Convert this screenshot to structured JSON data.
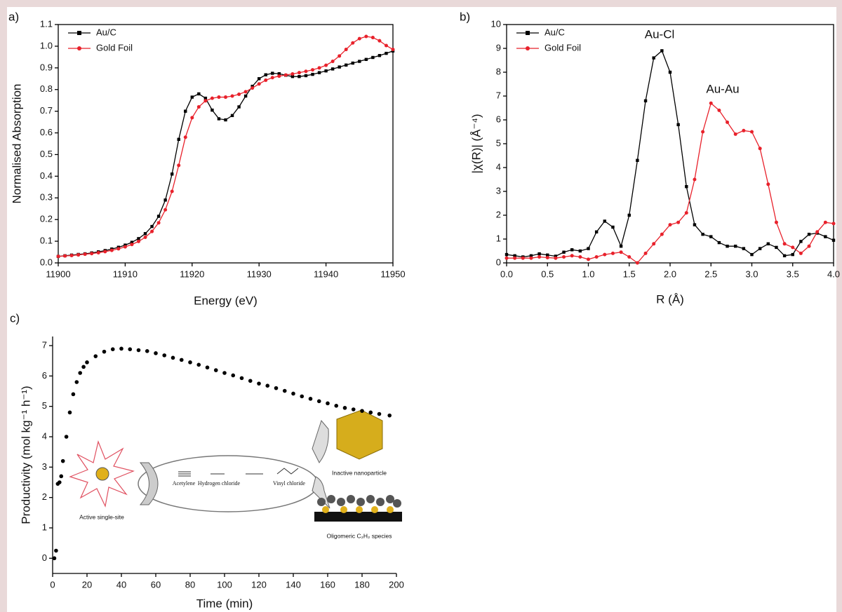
{
  "chart_data": [
    {
      "type": "line",
      "panel_label": "a)",
      "x_label": "Energy (eV)",
      "y_label": "Normalised Absorption",
      "x": [
        11900,
        11901,
        11902,
        11903,
        11904,
        11905,
        11906,
        11907,
        11908,
        11909,
        11910,
        11911,
        11912,
        11913,
        11914,
        11915,
        11916,
        11917,
        11918,
        11919,
        11920,
        11921,
        11922,
        11923,
        11924,
        11925,
        11926,
        11927,
        11928,
        11929,
        11930,
        11931,
        11932,
        11933,
        11934,
        11935,
        11936,
        11937,
        11938,
        11939,
        11940,
        11941,
        11942,
        11943,
        11944,
        11945,
        11946,
        11947,
        11948,
        11949,
        11950
      ],
      "series": [
        {
          "name": "Au/C",
          "color": "#000000",
          "values": [
            0.03,
            0.033,
            0.036,
            0.039,
            0.042,
            0.046,
            0.051,
            0.057,
            0.064,
            0.072,
            0.082,
            0.095,
            0.112,
            0.135,
            0.168,
            0.215,
            0.29,
            0.41,
            0.57,
            0.7,
            0.765,
            0.78,
            0.76,
            0.705,
            0.665,
            0.66,
            0.68,
            0.72,
            0.77,
            0.815,
            0.85,
            0.868,
            0.875,
            0.873,
            0.866,
            0.86,
            0.86,
            0.864,
            0.87,
            0.878,
            0.886,
            0.895,
            0.904,
            0.913,
            0.922,
            0.93,
            0.939,
            0.948,
            0.957,
            0.967,
            0.978
          ]
        },
        {
          "name": "Gold Foil",
          "color": "#e8212b",
          "values": [
            0.03,
            0.032,
            0.034,
            0.037,
            0.04,
            0.043,
            0.047,
            0.052,
            0.058,
            0.065,
            0.074,
            0.085,
            0.099,
            0.118,
            0.145,
            0.185,
            0.245,
            0.33,
            0.45,
            0.58,
            0.67,
            0.72,
            0.748,
            0.76,
            0.765,
            0.765,
            0.77,
            0.778,
            0.79,
            0.807,
            0.826,
            0.843,
            0.855,
            0.862,
            0.867,
            0.872,
            0.878,
            0.884,
            0.891,
            0.9,
            0.912,
            0.93,
            0.955,
            0.985,
            1.015,
            1.035,
            1.045,
            1.04,
            1.025,
            1.003,
            0.985
          ]
        }
      ],
      "xlim": [
        11900,
        11950
      ],
      "xticks": [
        11900,
        11910,
        11920,
        11930,
        11940,
        11950
      ],
      "ylim": [
        0,
        1.1
      ],
      "yticks": [
        {
          "value": 0,
          "label": "0.0"
        },
        0.1,
        0.2,
        0.3,
        0.4,
        0.5,
        0.6,
        0.7,
        0.8,
        0.9,
        {
          "value": 1,
          "label": "1.0"
        },
        1.1
      ],
      "legend": "upper left"
    },
    {
      "type": "line",
      "panel_label": "b)",
      "x_label": "R (Å)",
      "y_label": "|χ(R)| (Å⁻⁴)",
      "x": [
        0,
        0.1,
        0.2,
        0.3,
        0.4,
        0.5,
        0.6,
        0.7,
        0.8,
        0.9,
        1.0,
        1.1,
        1.2,
        1.3,
        1.4,
        1.5,
        1.6,
        1.7,
        1.8,
        1.9,
        2.0,
        2.1,
        2.2,
        2.3,
        2.4,
        2.5,
        2.6,
        2.7,
        2.8,
        2.9,
        3.0,
        3.1,
        3.2,
        3.3,
        3.4,
        3.5,
        3.6,
        3.7,
        3.8,
        3.9,
        4.0
      ],
      "series": [
        {
          "name": "Au/C",
          "color": "#000000",
          "values": [
            0.35,
            0.3,
            0.25,
            0.3,
            0.38,
            0.33,
            0.28,
            0.45,
            0.55,
            0.5,
            0.6,
            1.3,
            1.75,
            1.5,
            0.7,
            2.0,
            4.3,
            6.8,
            8.6,
            8.9,
            8.0,
            5.8,
            3.2,
            1.6,
            1.2,
            1.1,
            0.85,
            0.7,
            0.7,
            0.6,
            0.35,
            0.6,
            0.8,
            0.65,
            0.3,
            0.35,
            0.9,
            1.2,
            1.25,
            1.1,
            0.95
          ]
        },
        {
          "name": "Gold Foil",
          "color": "#e8212b",
          "values": [
            0.2,
            0.2,
            0.2,
            0.2,
            0.25,
            0.22,
            0.2,
            0.25,
            0.3,
            0.25,
            0.15,
            0.25,
            0.35,
            0.4,
            0.45,
            0.25,
            0.0,
            0.4,
            0.8,
            1.2,
            1.6,
            1.7,
            2.1,
            3.5,
            5.5,
            6.7,
            6.4,
            5.9,
            5.4,
            5.55,
            5.5,
            4.8,
            3.3,
            1.7,
            0.8,
            0.65,
            0.4,
            0.7,
            1.3,
            1.7,
            1.65
          ]
        }
      ],
      "xlim": [
        0,
        4
      ],
      "xticks": [
        {
          "value": 0,
          "label": "0.0"
        },
        0.5,
        {
          "value": 1,
          "label": "1.0"
        },
        1.5,
        {
          "value": 2,
          "label": "2.0"
        },
        2.5,
        {
          "value": 3,
          "label": "3.0"
        },
        3.5,
        {
          "value": 4,
          "label": "4.0"
        }
      ],
      "ylim": [
        0,
        10
      ],
      "yticks": [
        0,
        1,
        2,
        3,
        4,
        5,
        6,
        7,
        8,
        9,
        10
      ],
      "legend": "upper left",
      "annotations": [
        "Au-Cl",
        "Au-Au"
      ]
    },
    {
      "type": "scatter",
      "panel_label": "c)",
      "x_label": "Time (min)",
      "y_label": "Productivity (mol kg⁻¹ h⁻¹)",
      "color": "#000000",
      "x": [
        1,
        2,
        3,
        4,
        5,
        6,
        8,
        10,
        12,
        14,
        16,
        18,
        20,
        25,
        30,
        35,
        40,
        45,
        50,
        55,
        60,
        65,
        70,
        75,
        80,
        85,
        90,
        95,
        100,
        105,
        110,
        115,
        120,
        125,
        130,
        135,
        140,
        145,
        150,
        155,
        160,
        165,
        170,
        175,
        180,
        185,
        190,
        196
      ],
      "values": [
        0,
        0.25,
        2.45,
        2.5,
        2.7,
        3.2,
        4.0,
        4.8,
        5.4,
        5.8,
        6.1,
        6.3,
        6.45,
        6.65,
        6.8,
        6.88,
        6.9,
        6.88,
        6.85,
        6.82,
        6.75,
        6.68,
        6.6,
        6.53,
        6.45,
        6.37,
        6.28,
        6.19,
        6.1,
        6.02,
        5.93,
        5.84,
        5.75,
        5.68,
        5.6,
        5.51,
        5.42,
        5.33,
        5.25,
        5.17,
        5.1,
        5.02,
        4.95,
        4.9,
        4.85,
        4.8,
        4.75,
        4.7
      ],
      "xlim": [
        0,
        200
      ],
      "xticks": [
        0,
        20,
        40,
        60,
        80,
        100,
        120,
        140,
        160,
        180,
        200
      ],
      "ylim": [
        -0.5,
        7.3
      ],
      "yticks": [
        0,
        1,
        2,
        3,
        4,
        5,
        6,
        7
      ],
      "annotations": [
        "Active single-site",
        "Acetylene",
        "Hydrogen chloride",
        "Vinyl chloride",
        "Inactive nanoparticle",
        "Oligomeric C₂H₂ species"
      ]
    }
  ]
}
